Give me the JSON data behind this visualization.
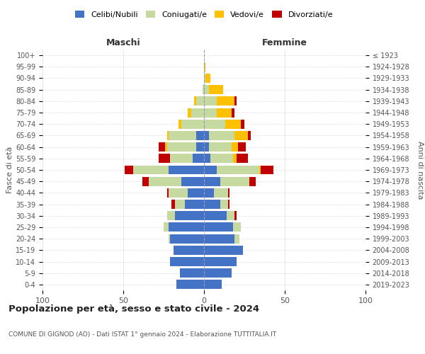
{
  "age_groups": [
    "0-4",
    "5-9",
    "10-14",
    "15-19",
    "20-24",
    "25-29",
    "30-34",
    "35-39",
    "40-44",
    "45-49",
    "50-54",
    "55-59",
    "60-64",
    "65-69",
    "70-74",
    "75-79",
    "80-84",
    "85-89",
    "90-94",
    "95-99",
    "100+"
  ],
  "birth_years": [
    "2019-2023",
    "2014-2018",
    "2009-2013",
    "2004-2008",
    "1999-2003",
    "1994-1998",
    "1989-1993",
    "1984-1988",
    "1979-1983",
    "1974-1978",
    "1969-1973",
    "1964-1968",
    "1959-1963",
    "1954-1958",
    "1949-1953",
    "1944-1948",
    "1939-1943",
    "1934-1938",
    "1929-1933",
    "1924-1928",
    "≤ 1923"
  ],
  "males": {
    "celibi": [
      17,
      15,
      21,
      19,
      21,
      22,
      18,
      12,
      10,
      14,
      22,
      7,
      5,
      5,
      0,
      0,
      0,
      0,
      0,
      0,
      0
    ],
    "coniugati": [
      0,
      0,
      0,
      0,
      1,
      3,
      5,
      6,
      12,
      20,
      22,
      14,
      18,
      17,
      14,
      8,
      5,
      1,
      0,
      0,
      0
    ],
    "vedovi": [
      0,
      0,
      0,
      0,
      0,
      0,
      0,
      0,
      0,
      0,
      0,
      0,
      1,
      1,
      2,
      2,
      1,
      0,
      0,
      0,
      0
    ],
    "divorziati": [
      0,
      0,
      0,
      0,
      0,
      0,
      0,
      2,
      1,
      4,
      5,
      7,
      4,
      0,
      0,
      0,
      0,
      0,
      0,
      0,
      0
    ]
  },
  "females": {
    "nubili": [
      11,
      17,
      20,
      24,
      19,
      18,
      14,
      10,
      6,
      10,
      8,
      4,
      3,
      3,
      0,
      0,
      0,
      0,
      0,
      0,
      0
    ],
    "coniugate": [
      0,
      0,
      0,
      0,
      3,
      5,
      5,
      5,
      9,
      18,
      26,
      14,
      14,
      16,
      13,
      8,
      8,
      3,
      1,
      0,
      0
    ],
    "vedove": [
      0,
      0,
      0,
      0,
      0,
      0,
      0,
      0,
      0,
      0,
      1,
      2,
      4,
      8,
      10,
      9,
      11,
      9,
      3,
      1,
      0
    ],
    "divorziate": [
      0,
      0,
      0,
      0,
      0,
      0,
      1,
      1,
      1,
      4,
      8,
      7,
      5,
      2,
      2,
      2,
      1,
      0,
      0,
      0,
      0
    ]
  },
  "colors": {
    "celibi_nubili": "#4472c4",
    "coniugati": "#c5d9a0",
    "vedovi": "#ffc000",
    "divorziati": "#c00000"
  },
  "xlim": 100,
  "title": "Popolazione per età, sesso e stato civile - 2024",
  "subtitle": "COMUNE DI GIGNOD (AO) - Dati ISTAT 1° gennaio 2024 - Elaborazione TUTTITALIA.IT",
  "ylabel_left": "Fasce di età",
  "ylabel_right": "Anni di nascita",
  "xlabel_left": "Maschi",
  "xlabel_right": "Femmine",
  "legend_labels": [
    "Celibi/Nubili",
    "Coniugati/e",
    "Vedovi/e",
    "Divorziati/e"
  ],
  "background_color": "#ffffff",
  "grid_color": "#cccccc"
}
